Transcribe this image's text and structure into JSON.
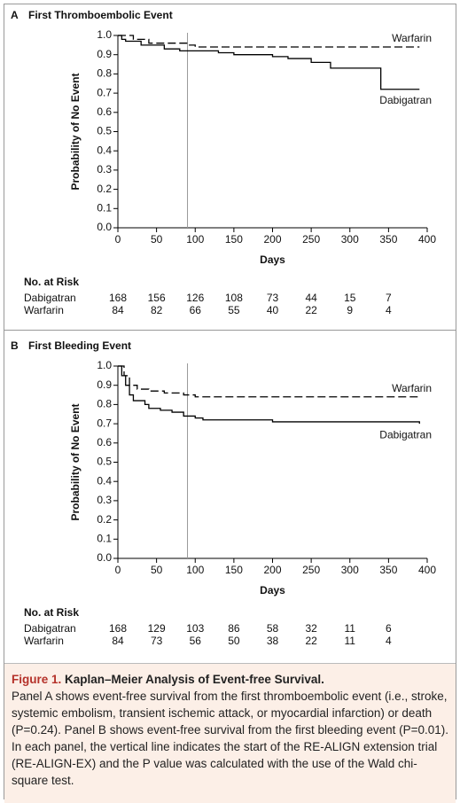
{
  "chart_data": [
    {
      "type": "step",
      "panel": "A",
      "title": "First Thromboembolic Event",
      "x_label": "Days",
      "y_label": "Probability of No Event",
      "xlim": [
        0,
        400
      ],
      "xticks": [
        0,
        50,
        100,
        150,
        200,
        250,
        300,
        350,
        400
      ],
      "ylim": [
        0,
        1
      ],
      "yticks": [
        {
          "value": 0,
          "label": "0.0"
        },
        0.1,
        0.2,
        0.3,
        0.4,
        0.5,
        0.6,
        0.7,
        0.8,
        0.9,
        {
          "value": 1,
          "label": "1.0"
        }
      ],
      "vline": 90,
      "series": [
        {
          "name": "Warfarin",
          "color": "#000000",
          "dash": true,
          "x": [
            0,
            20,
            40,
            90,
            100,
            390
          ],
          "values": [
            1.0,
            0.98,
            0.96,
            0.95,
            0.94,
            0.94
          ]
        },
        {
          "name": "Dabigatran",
          "color": "#000000",
          "dash": false,
          "x": [
            0,
            5,
            10,
            30,
            60,
            80,
            130,
            150,
            200,
            220,
            250,
            275,
            340,
            390
          ],
          "values": [
            1.0,
            0.98,
            0.97,
            0.95,
            0.93,
            0.92,
            0.91,
            0.9,
            0.89,
            0.88,
            0.86,
            0.83,
            0.72,
            0.72
          ]
        }
      ],
      "risk_table": {
        "title": "No. at Risk",
        "rows": [
          {
            "name": "Dabigatran",
            "values": [
              168,
              156,
              126,
              108,
              73,
              44,
              15,
              7
            ]
          },
          {
            "name": "Warfarin",
            "values": [
              84,
              82,
              66,
              55,
              40,
              22,
              9,
              4
            ]
          }
        ]
      }
    },
    {
      "type": "step",
      "panel": "B",
      "title": "First Bleeding Event",
      "x_label": "Days",
      "y_label": "Probability of No Event",
      "xlim": [
        0,
        400
      ],
      "xticks": [
        0,
        50,
        100,
        150,
        200,
        250,
        300,
        350,
        400
      ],
      "ylim": [
        0,
        1
      ],
      "yticks": [
        {
          "value": 0,
          "label": "0.0"
        },
        0.1,
        0.2,
        0.3,
        0.4,
        0.5,
        0.6,
        0.7,
        0.8,
        0.9,
        {
          "value": 1,
          "label": "1.0"
        }
      ],
      "vline": 90,
      "series": [
        {
          "name": "Warfarin",
          "color": "#000000",
          "dash": true,
          "x": [
            0,
            8,
            15,
            25,
            40,
            60,
            85,
            100,
            390
          ],
          "values": [
            1.0,
            0.95,
            0.9,
            0.88,
            0.87,
            0.86,
            0.85,
            0.84,
            0.84
          ]
        },
        {
          "name": "Dabigatran",
          "color": "#000000",
          "dash": false,
          "x": [
            0,
            5,
            10,
            15,
            20,
            35,
            40,
            55,
            70,
            85,
            100,
            110,
            200,
            390
          ],
          "values": [
            1.0,
            0.95,
            0.9,
            0.85,
            0.82,
            0.8,
            0.78,
            0.77,
            0.76,
            0.74,
            0.73,
            0.72,
            0.71,
            0.7
          ]
        }
      ],
      "risk_table": {
        "title": "No. at Risk",
        "rows": [
          {
            "name": "Dabigatran",
            "values": [
              168,
              129,
              103,
              86,
              58,
              32,
              11,
              6
            ]
          },
          {
            "name": "Warfarin",
            "values": [
              84,
              73,
              56,
              50,
              38,
              22,
              11,
              4
            ]
          }
        ]
      }
    }
  ],
  "caption": {
    "label": "Figure 1.",
    "title": "Kaplan–Meier Analysis of Event-free Survival.",
    "text": "Panel A shows event-free survival from the first thromboembolic event (i.e., stroke, systemic embolism, transient ischemic attack, or myocardial infarction) or death (P=0.24). Panel B shows event-free survival from the first bleeding event (P=0.01). In each panel, the vertical line indicates the start of the RE-ALIGN extension trial (RE-ALIGN-EX) and the P value was calculated with the use of the Wald chi-square test."
  }
}
